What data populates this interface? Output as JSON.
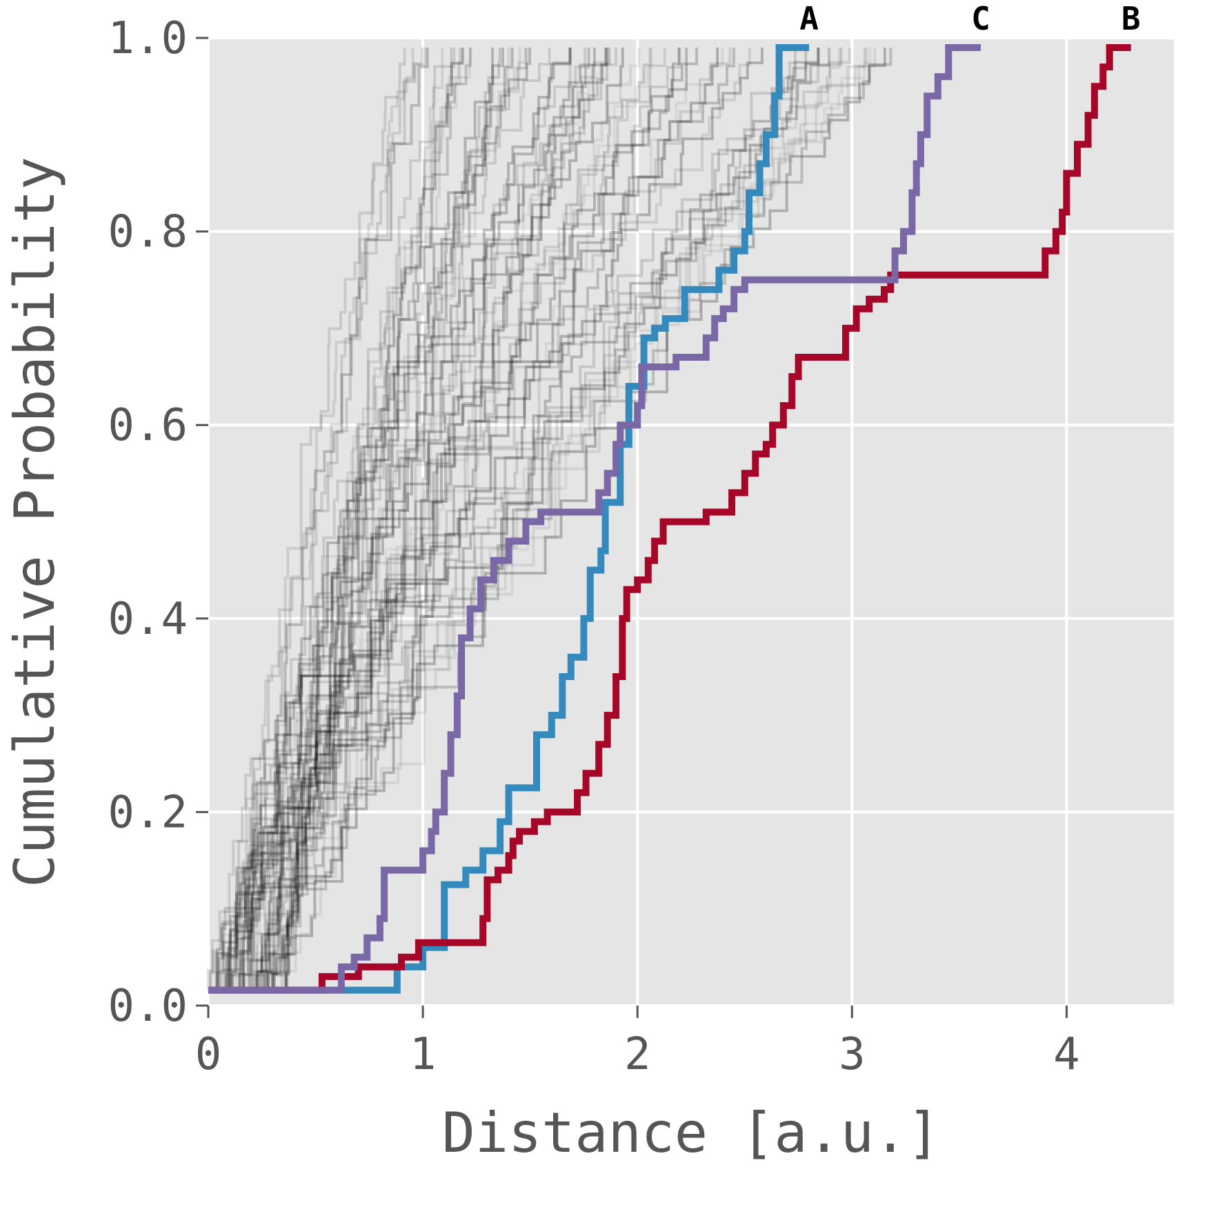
{
  "chart_data": {
    "type": "line",
    "subtype": "empirical cumulative distribution (step)",
    "xlabel": "Distance [a.u.]",
    "ylabel": "Cumulative Probability",
    "xlim": [
      0,
      4.5
    ],
    "ylim": [
      0,
      1.0
    ],
    "x_ticks": [
      "0",
      "1",
      "2",
      "3",
      "4"
    ],
    "y_ticks": [
      "0.0",
      "0.2",
      "0.4",
      "0.6",
      "0.8",
      "1.0"
    ],
    "grid": true,
    "background_color": "#e5e5e5",
    "grid_color": "#ffffff",
    "background_series_color": "#000000",
    "background_series_count": 64,
    "series": [
      {
        "name": "A",
        "color": "#348abd",
        "points": [
          [
            0,
            0.016
          ],
          [
            0.54,
            0.016
          ],
          [
            0.88,
            0.016
          ],
          [
            0.88,
            0.04
          ],
          [
            1.0,
            0.04
          ],
          [
            1.0,
            0.06
          ],
          [
            1.07,
            0.06
          ],
          [
            1.1,
            0.125
          ],
          [
            1.2,
            0.125
          ],
          [
            1.2,
            0.14
          ],
          [
            1.28,
            0.14
          ],
          [
            1.28,
            0.16
          ],
          [
            1.36,
            0.16
          ],
          [
            1.36,
            0.19
          ],
          [
            1.4,
            0.19
          ],
          [
            1.4,
            0.225
          ],
          [
            1.5,
            0.225
          ],
          [
            1.53,
            0.28
          ],
          [
            1.6,
            0.3
          ],
          [
            1.65,
            0.34
          ],
          [
            1.69,
            0.36
          ],
          [
            1.75,
            0.4
          ],
          [
            1.78,
            0.45
          ],
          [
            1.83,
            0.47
          ],
          [
            1.85,
            0.5
          ],
          [
            1.85,
            0.52
          ],
          [
            1.92,
            0.58
          ],
          [
            1.96,
            0.64
          ],
          [
            2.0,
            0.64
          ],
          [
            2.03,
            0.69
          ],
          [
            2.08,
            0.7
          ],
          [
            2.13,
            0.71
          ],
          [
            2.2,
            0.71
          ],
          [
            2.22,
            0.74
          ],
          [
            2.38,
            0.74
          ],
          [
            2.38,
            0.76
          ],
          [
            2.45,
            0.76
          ],
          [
            2.45,
            0.78
          ],
          [
            2.5,
            0.8
          ],
          [
            2.52,
            0.84
          ],
          [
            2.57,
            0.87
          ],
          [
            2.6,
            0.9
          ],
          [
            2.64,
            0.94
          ],
          [
            2.66,
            0.99
          ],
          [
            2.8,
            0.99
          ]
        ]
      },
      {
        "name": "B",
        "color": "#a60628",
        "points": [
          [
            0,
            0.016
          ],
          [
            0.53,
            0.016
          ],
          [
            0.53,
            0.03
          ],
          [
            0.7,
            0.03
          ],
          [
            0.7,
            0.04
          ],
          [
            0.9,
            0.04
          ],
          [
            0.9,
            0.05
          ],
          [
            0.98,
            0.05
          ],
          [
            0.98,
            0.065
          ],
          [
            1.26,
            0.065
          ],
          [
            1.28,
            0.09
          ],
          [
            1.3,
            0.13
          ],
          [
            1.35,
            0.14
          ],
          [
            1.4,
            0.155
          ],
          [
            1.42,
            0.17
          ],
          [
            1.45,
            0.18
          ],
          [
            1.52,
            0.19
          ],
          [
            1.58,
            0.2
          ],
          [
            1.7,
            0.2
          ],
          [
            1.72,
            0.22
          ],
          [
            1.76,
            0.24
          ],
          [
            1.82,
            0.27
          ],
          [
            1.86,
            0.3
          ],
          [
            1.9,
            0.34
          ],
          [
            1.93,
            0.4
          ],
          [
            1.95,
            0.43
          ],
          [
            2.0,
            0.44
          ],
          [
            2.05,
            0.46
          ],
          [
            2.08,
            0.48
          ],
          [
            2.12,
            0.5
          ],
          [
            2.28,
            0.5
          ],
          [
            2.32,
            0.51
          ],
          [
            2.42,
            0.51
          ],
          [
            2.44,
            0.53
          ],
          [
            2.5,
            0.55
          ],
          [
            2.55,
            0.57
          ],
          [
            2.6,
            0.58
          ],
          [
            2.63,
            0.6
          ],
          [
            2.68,
            0.62
          ],
          [
            2.72,
            0.65
          ],
          [
            2.75,
            0.67
          ],
          [
            2.95,
            0.67
          ],
          [
            2.97,
            0.7
          ],
          [
            3.02,
            0.72
          ],
          [
            3.08,
            0.73
          ],
          [
            3.15,
            0.74
          ],
          [
            3.18,
            0.755
          ],
          [
            3.87,
            0.755
          ],
          [
            3.9,
            0.78
          ],
          [
            3.95,
            0.8
          ],
          [
            3.98,
            0.82
          ],
          [
            4.0,
            0.86
          ],
          [
            4.05,
            0.89
          ],
          [
            4.1,
            0.92
          ],
          [
            4.13,
            0.95
          ],
          [
            4.17,
            0.97
          ],
          [
            4.2,
            0.99
          ],
          [
            4.3,
            0.99
          ]
        ]
      },
      {
        "name": "C",
        "color": "#7a68a6",
        "points": [
          [
            0,
            0.016
          ],
          [
            0.58,
            0.016
          ],
          [
            0.62,
            0.04
          ],
          [
            0.68,
            0.05
          ],
          [
            0.74,
            0.07
          ],
          [
            0.8,
            0.09
          ],
          [
            0.82,
            0.14
          ],
          [
            0.98,
            0.14
          ],
          [
            1.0,
            0.16
          ],
          [
            1.04,
            0.18
          ],
          [
            1.06,
            0.2
          ],
          [
            1.1,
            0.24
          ],
          [
            1.13,
            0.28
          ],
          [
            1.16,
            0.32
          ],
          [
            1.18,
            0.38
          ],
          [
            1.22,
            0.41
          ],
          [
            1.27,
            0.44
          ],
          [
            1.33,
            0.46
          ],
          [
            1.4,
            0.48
          ],
          [
            1.48,
            0.5
          ],
          [
            1.55,
            0.51
          ],
          [
            1.78,
            0.51
          ],
          [
            1.82,
            0.53
          ],
          [
            1.86,
            0.55
          ],
          [
            1.9,
            0.58
          ],
          [
            1.92,
            0.6
          ],
          [
            2.0,
            0.62
          ],
          [
            2.02,
            0.66
          ],
          [
            2.15,
            0.66
          ],
          [
            2.18,
            0.67
          ],
          [
            2.28,
            0.67
          ],
          [
            2.32,
            0.69
          ],
          [
            2.36,
            0.71
          ],
          [
            2.4,
            0.72
          ],
          [
            2.45,
            0.74
          ],
          [
            2.5,
            0.75
          ],
          [
            3.18,
            0.75
          ],
          [
            3.2,
            0.78
          ],
          [
            3.24,
            0.8
          ],
          [
            3.28,
            0.84
          ],
          [
            3.3,
            0.87
          ],
          [
            3.32,
            0.9
          ],
          [
            3.35,
            0.94
          ],
          [
            3.4,
            0.96
          ],
          [
            3.45,
            0.99
          ],
          [
            3.6,
            0.99
          ]
        ]
      }
    ]
  }
}
